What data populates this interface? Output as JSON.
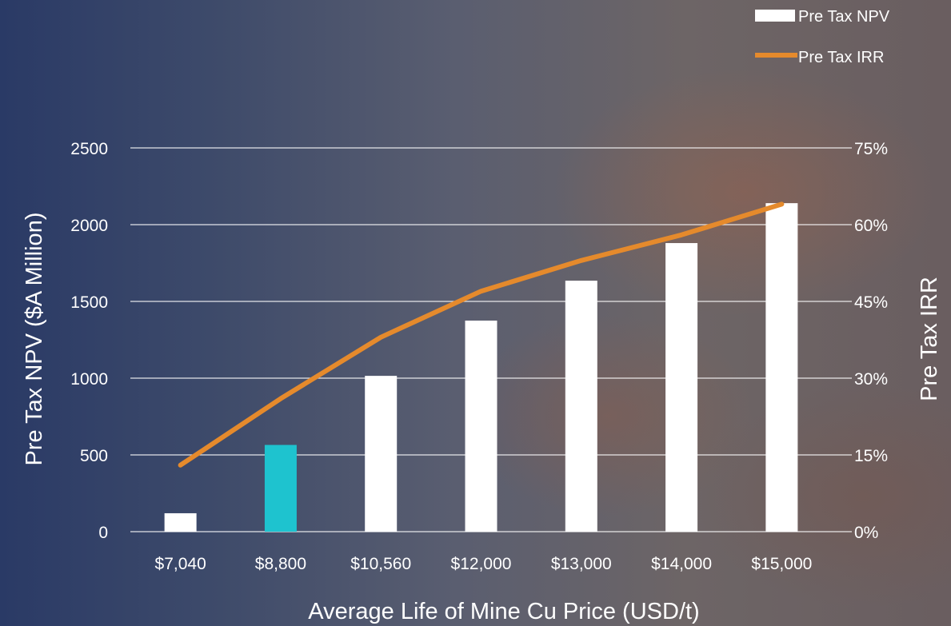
{
  "chart_data": {
    "type": "bar",
    "categories": [
      "$7,040",
      "$8,800",
      "$10,560",
      "$12,000",
      "$13,000",
      "$14,000",
      "$15,000"
    ],
    "series": [
      {
        "name": "Pre Tax NPV",
        "type": "bar",
        "axis": "left",
        "values": [
          120,
          565,
          1015,
          1375,
          1635,
          1880,
          2140
        ],
        "color": "#ffffff",
        "highlight": {
          "index": 1,
          "color": "#1ec3cf"
        }
      },
      {
        "name": "Pre Tax IRR",
        "type": "line",
        "axis": "right",
        "values": [
          13,
          26,
          38,
          47,
          53,
          58,
          64
        ],
        "color": "#e58a2c"
      }
    ],
    "xlabel": "Average Life of Mine Cu Price (USD/t)",
    "ylabel": "Pre Tax NPV ($A Million)",
    "y2label": "Pre Tax IRR",
    "ylim": [
      0,
      2500
    ],
    "y2lim": [
      0,
      75
    ],
    "yticks": [
      "0",
      "500",
      "1000",
      "1500",
      "2000",
      "2500"
    ],
    "y2ticks": [
      "0%",
      "15%",
      "30%",
      "45%",
      "60%",
      "75%"
    ],
    "grid": true,
    "legend_position": "top-right"
  }
}
